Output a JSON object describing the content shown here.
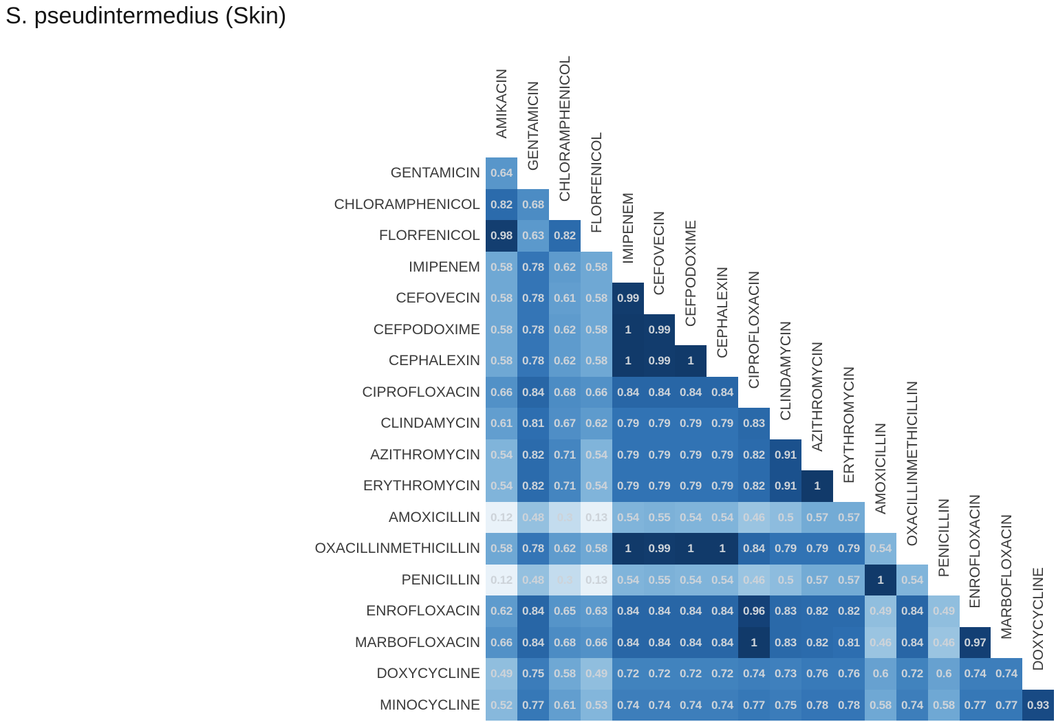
{
  "page": {
    "title": "S. pseudintermedius (Skin)",
    "background_color": "#ffffff"
  },
  "chart_data": {
    "type": "heatmap",
    "subtype": "lower_triangle_correlation_matrix",
    "title": "S. pseudintermedius (Skin)",
    "legend": "none",
    "grid": "off",
    "value_range": [
      0,
      1
    ],
    "col_labels": [
      "AMIKACIN",
      "GENTAMICIN",
      "CHLORAMPHENICOL",
      "FLORFENICOL",
      "IMIPENEM",
      "CEFOVECIN",
      "CEFPODOXIME",
      "CEPHALEXIN",
      "CIPROFLOXACIN",
      "CLINDAMYCIN",
      "AZITHROMYCIN",
      "ERYTHROMYCIN",
      "AMOXICILLIN",
      "OXACILLINMETHICILLIN",
      "PENICILLIN",
      "ENROFLOXACIN",
      "MARBOFLOXACIN",
      "DOXYCYCLINE"
    ],
    "row_labels": [
      "GENTAMICIN",
      "CHLORAMPHENICOL",
      "FLORFENICOL",
      "IMIPENEM",
      "CEFOVECIN",
      "CEFPODOXIME",
      "CEPHALEXIN",
      "CIPROFLOXACIN",
      "CLINDAMYCIN",
      "AZITHROMYCIN",
      "ERYTHROMYCIN",
      "AMOXICILLIN",
      "OXACILLINMETHICILLIN",
      "PENICILLIN",
      "ENROFLOXACIN",
      "MARBOFLOXACIN",
      "DOXYCYCLINE",
      "MINOCYCLINE"
    ],
    "values": [
      [
        0.64
      ],
      [
        0.82,
        0.68
      ],
      [
        0.98,
        0.63,
        0.82
      ],
      [
        0.58,
        0.78,
        0.62,
        0.58
      ],
      [
        0.58,
        0.78,
        0.61,
        0.58,
        0.99
      ],
      [
        0.58,
        0.78,
        0.62,
        0.58,
        1,
        0.99
      ],
      [
        0.58,
        0.78,
        0.62,
        0.58,
        1,
        0.99,
        1
      ],
      [
        0.66,
        0.84,
        0.68,
        0.66,
        0.84,
        0.84,
        0.84,
        0.84
      ],
      [
        0.61,
        0.81,
        0.67,
        0.62,
        0.79,
        0.79,
        0.79,
        0.79,
        0.83
      ],
      [
        0.54,
        0.82,
        0.71,
        0.54,
        0.79,
        0.79,
        0.79,
        0.79,
        0.82,
        0.91
      ],
      [
        0.54,
        0.82,
        0.71,
        0.54,
        0.79,
        0.79,
        0.79,
        0.79,
        0.82,
        0.91,
        1
      ],
      [
        0.12,
        0.48,
        0.3,
        0.13,
        0.54,
        0.55,
        0.54,
        0.54,
        0.46,
        0.5,
        0.57,
        0.57
      ],
      [
        0.58,
        0.78,
        0.62,
        0.58,
        1,
        0.99,
        1,
        1,
        0.84,
        0.79,
        0.79,
        0.79,
        0.54
      ],
      [
        0.12,
        0.48,
        0.3,
        0.13,
        0.54,
        0.55,
        0.54,
        0.54,
        0.46,
        0.5,
        0.57,
        0.57,
        1,
        0.54
      ],
      [
        0.62,
        0.84,
        0.65,
        0.63,
        0.84,
        0.84,
        0.84,
        0.84,
        0.96,
        0.83,
        0.82,
        0.82,
        0.49,
        0.84,
        0.49
      ],
      [
        0.66,
        0.84,
        0.68,
        0.66,
        0.84,
        0.84,
        0.84,
        0.84,
        1,
        0.83,
        0.82,
        0.81,
        0.46,
        0.84,
        0.46,
        0.97
      ],
      [
        0.49,
        0.75,
        0.58,
        0.49,
        0.72,
        0.72,
        0.72,
        0.72,
        0.74,
        0.73,
        0.76,
        0.76,
        0.6,
        0.72,
        0.6,
        0.74,
        0.74
      ],
      [
        0.52,
        0.77,
        0.61,
        0.53,
        0.74,
        0.74,
        0.74,
        0.74,
        0.77,
        0.75,
        0.78,
        0.78,
        0.58,
        0.74,
        0.58,
        0.77,
        0.77,
        0.93
      ]
    ],
    "colormap_stops": [
      [
        0.0,
        "#f7fbff"
      ],
      [
        0.12,
        "#e9f2f9"
      ],
      [
        0.3,
        "#c3dcee"
      ],
      [
        0.46,
        "#9ac4e1"
      ],
      [
        0.54,
        "#80b4da"
      ],
      [
        0.62,
        "#5e9bcd"
      ],
      [
        0.7,
        "#4687c1"
      ],
      [
        0.8,
        "#2f71b3"
      ],
      [
        0.9,
        "#1d5592"
      ],
      [
        0.95,
        "#15437a"
      ],
      [
        1.0,
        "#113a6a"
      ]
    ],
    "number_color": "#cdd3d9",
    "label_color": "#3a3a3a"
  }
}
